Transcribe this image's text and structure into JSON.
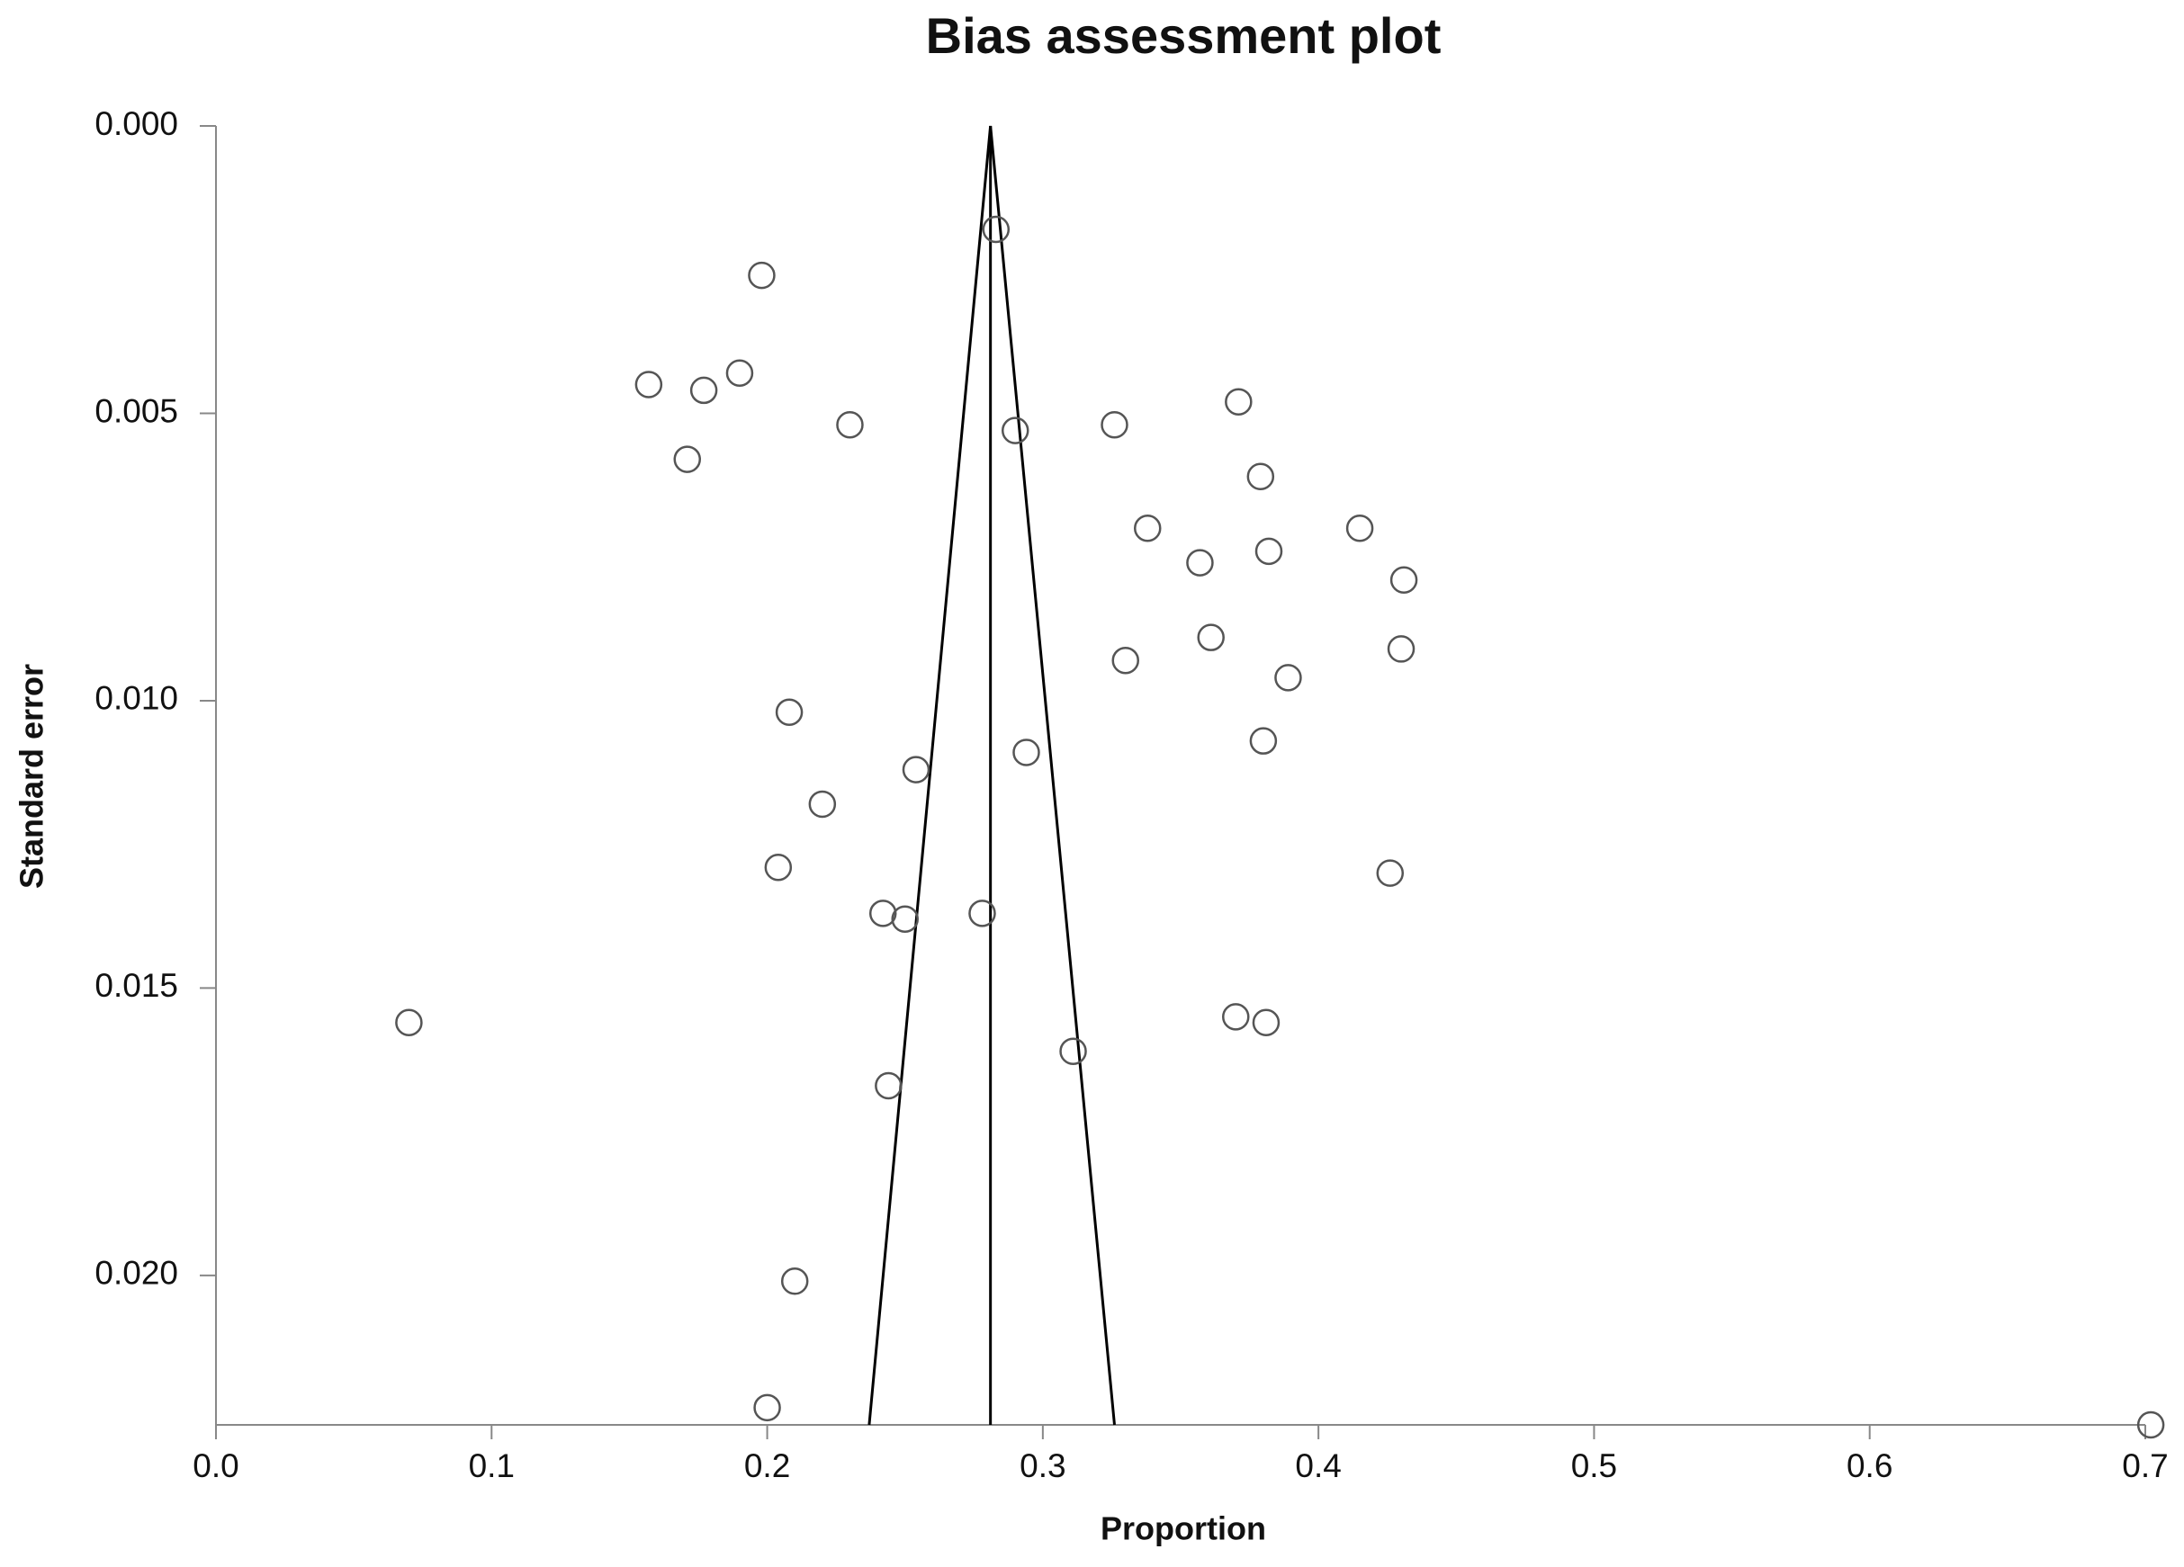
{
  "chart_data": {
    "type": "scatter",
    "title": "Bias assessment plot",
    "x_label": "Proportion",
    "y_label": "Standard error",
    "xlim": [
      0,
      0.7
    ],
    "ylim": [
      0,
      0.0226
    ],
    "y_reversed": true,
    "xticks": [
      {
        "value": 0,
        "label": "0.0"
      },
      0.1,
      0.2,
      0.3,
      0.4,
      0.5,
      0.6,
      0.7
    ],
    "yticks": [
      {
        "value": 0,
        "label": "0.000"
      },
      0.005,
      {
        "value": 0.01,
        "label": "0.010"
      },
      0.015,
      {
        "value": 0.02,
        "label": "0.020"
      }
    ],
    "marker_color": "#555555",
    "line_color": "#000000",
    "x": [
      0.283,
      0.198,
      0.157,
      0.177,
      0.19,
      0.23,
      0.171,
      0.29,
      0.326,
      0.371,
      0.379,
      0.338,
      0.415,
      0.357,
      0.382,
      0.431,
      0.361,
      0.43,
      0.33,
      0.389,
      0.208,
      0.38,
      0.294,
      0.254,
      0.22,
      0.204,
      0.426,
      0.242,
      0.25,
      0.278,
      0.07,
      0.37,
      0.381,
      0.311,
      0.244,
      0.21,
      0.2,
      0.702
    ],
    "y": [
      0.0018,
      0.0026,
      0.0045,
      0.0046,
      0.0043,
      0.0052,
      0.0058,
      0.0053,
      0.0052,
      0.0048,
      0.0061,
      0.007,
      0.007,
      0.0076,
      0.0074,
      0.0079,
      0.0089,
      0.0091,
      0.0093,
      0.0096,
      0.0102,
      0.0107,
      0.0109,
      0.0112,
      0.0118,
      0.0129,
      0.013,
      0.0137,
      0.0138,
      0.0137,
      0.0156,
      0.0155,
      0.0156,
      0.0161,
      0.0167,
      0.0201,
      0.0223,
      0.0226
    ],
    "lines": [
      {
        "x": [
          0.281,
          0.281
        ],
        "y": [
          0,
          0.0226
        ]
      },
      {
        "x": [
          0.237,
          0.281,
          0.326
        ],
        "y": [
          0.0226,
          0,
          0.0226
        ]
      }
    ]
  }
}
